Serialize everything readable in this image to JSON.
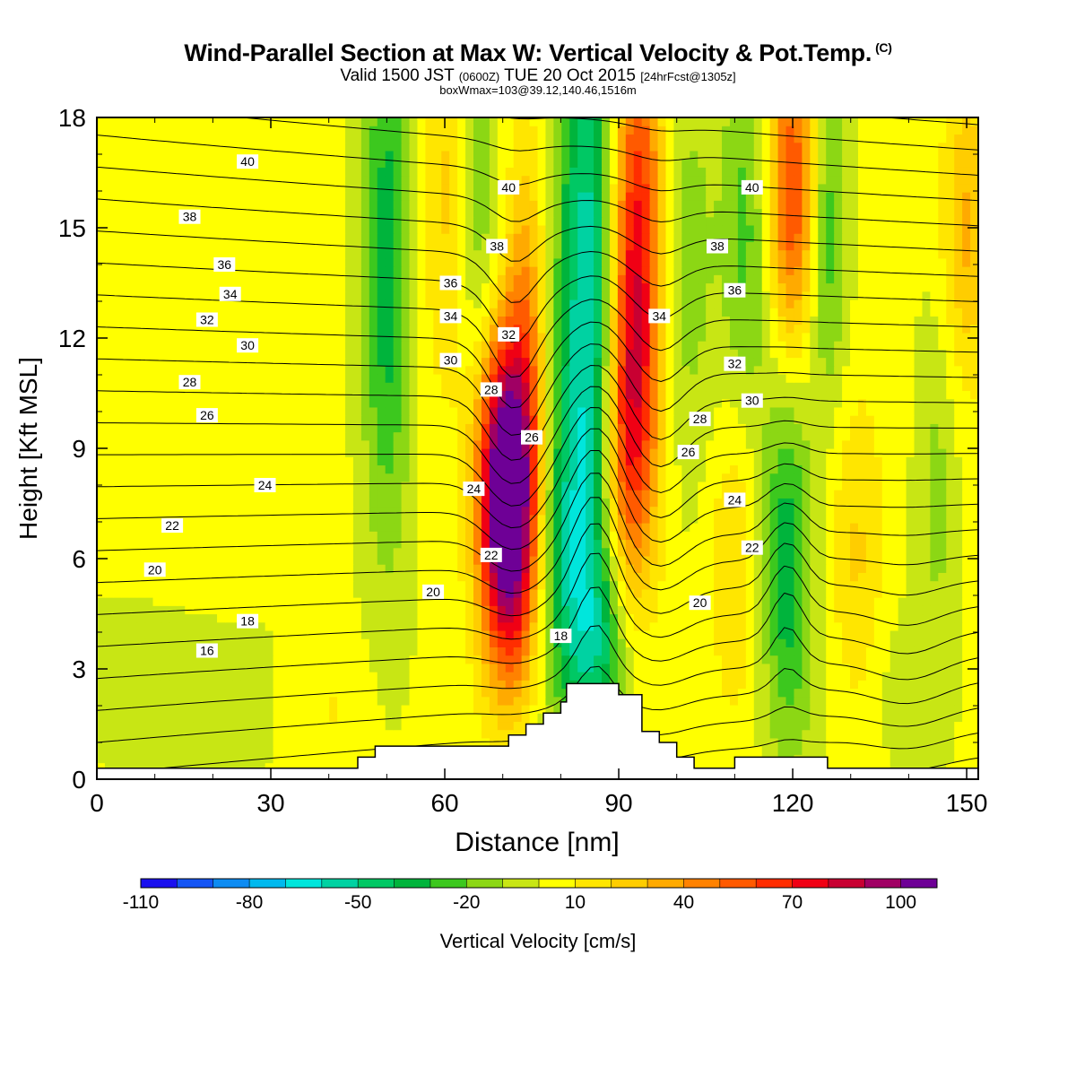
{
  "header": {
    "title": "Wind-Parallel Section at Max W: Vertical Velocity & Pot.Temp.",
    "title_tag": "(C)",
    "subtitle_valid": "Valid 1500 JST",
    "subtitle_utc": "(0600Z)",
    "subtitle_date": "TUE 20 Oct 2015",
    "subtitle_fcst": "[24hrFcst@1305z]",
    "subtitle2": "boxWmax=103@39.12,140.46,1516m"
  },
  "chart_data": {
    "type": "heatmap",
    "xlabel": "Distance [nm]",
    "ylabel": "Height [Kft MSL]",
    "xlim": [
      0,
      152
    ],
    "ylim": [
      0,
      18
    ],
    "xticks": [
      0,
      30,
      60,
      90,
      120,
      150
    ],
    "yticks": [
      0,
      3,
      6,
      9,
      12,
      15,
      18
    ],
    "colorbar": {
      "label": "Vertical Velocity [cm/s]",
      "levels": [
        -110,
        -100,
        -90,
        -80,
        -70,
        -60,
        -50,
        -40,
        -30,
        -20,
        -10,
        0,
        10,
        20,
        30,
        40,
        50,
        60,
        70,
        80,
        90,
        100,
        110
      ],
      "tick_labels": [
        "-110",
        "-80",
        "-50",
        "-20",
        "10",
        "40",
        "70",
        "100"
      ],
      "colors": [
        "#1a10ee",
        "#1455f5",
        "#0e8cf2",
        "#00b9ee",
        "#00e6dc",
        "#00d2a2",
        "#00c864",
        "#00b43c",
        "#3cc81e",
        "#8cd714",
        "#c8e614",
        "#ffff00",
        "#ffe600",
        "#ffcd00",
        "#ffaa00",
        "#ff8200",
        "#ff5a00",
        "#ff2d00",
        "#f00014",
        "#c80032",
        "#a00064",
        "#6e0096"
      ]
    },
    "w_field": {
      "units": "cm/s",
      "background_w": 2,
      "features": [
        {
          "x": 71,
          "z": 6.5,
          "sx": 3.5,
          "sz": 2.8,
          "w": 100
        },
        {
          "x": 70,
          "z": 9.5,
          "sx": 3.5,
          "sz": 2.5,
          "w": 55
        },
        {
          "x": 74,
          "z": 12,
          "sx": 2.5,
          "sz": 4.0,
          "w": 35
        },
        {
          "x": 93,
          "z": 14,
          "sx": 3.5,
          "sz": 5.0,
          "w": 80
        },
        {
          "x": 91,
          "z": 9,
          "sx": 3.0,
          "sz": 3.0,
          "w": 40
        },
        {
          "x": 120,
          "z": 16,
          "sx": 3.0,
          "sz": 3.0,
          "w": 60
        },
        {
          "x": 85,
          "z": 13,
          "sx": 4.0,
          "sz": 6.0,
          "w": -65
        },
        {
          "x": 81,
          "z": 6,
          "sx": 4.0,
          "sz": 3.0,
          "w": -35
        },
        {
          "x": 87,
          "z": 3.5,
          "sx": 4.0,
          "sz": 1.8,
          "w": -30
        },
        {
          "x": 50,
          "z": 14,
          "sx": 3.0,
          "sz": 5.5,
          "w": -38
        },
        {
          "x": 60,
          "z": 16,
          "sx": 3.0,
          "sz": 4.0,
          "w": 20
        },
        {
          "x": 66,
          "z": 15,
          "sx": 2.5,
          "sz": 4.0,
          "w": -20
        },
        {
          "x": 101,
          "z": 14,
          "sx": 4.0,
          "sz": 4.0,
          "w": -20
        },
        {
          "x": 112,
          "z": 15,
          "sx": 3.0,
          "sz": 4.0,
          "w": -25
        },
        {
          "x": 119,
          "z": 6,
          "sx": 3.0,
          "sz": 3.5,
          "w": -38
        },
        {
          "x": 126,
          "z": 15,
          "sx": 2.5,
          "sz": 3.5,
          "w": -30
        },
        {
          "x": 145,
          "z": 8,
          "sx": 2.5,
          "sz": 3.5,
          "w": -15
        },
        {
          "x": 150,
          "z": 15,
          "sx": 3.0,
          "sz": 3.0,
          "w": 30
        },
        {
          "x": 110,
          "z": 6,
          "sx": 3.0,
          "sz": 3.0,
          "w": 20
        },
        {
          "x": 131,
          "z": 5,
          "sx": 3.5,
          "sz": 4.0,
          "w": 22
        },
        {
          "x": 20,
          "z": 8.5,
          "sx": 10,
          "sz": 4.0,
          "w": 8
        },
        {
          "x": 18,
          "z": 3,
          "sx": 14,
          "sz": 2.5,
          "w": -8
        },
        {
          "x": 40,
          "z": 2,
          "sx": 5,
          "sz": 1.5,
          "w": 10
        },
        {
          "x": 132,
          "z": 2.5,
          "sx": 8,
          "sz": 2.0,
          "w": -10
        }
      ]
    },
    "terrain": {
      "x": [
        0,
        45,
        45,
        48,
        48,
        71,
        71,
        74,
        74,
        77,
        77,
        80,
        80,
        81,
        81,
        90,
        90,
        94,
        94,
        97,
        97,
        100,
        100,
        103,
        103,
        110,
        110,
        126,
        126,
        152
      ],
      "z": [
        0.3,
        0.3,
        0.6,
        0.6,
        0.9,
        0.9,
        1.2,
        1.2,
        1.5,
        1.5,
        1.8,
        1.8,
        2.1,
        2.1,
        2.6,
        2.6,
        2.3,
        2.3,
        1.3,
        1.3,
        1.0,
        1.0,
        0.6,
        0.6,
        0.3,
        0.3,
        0.6,
        0.6,
        0.3,
        0.3
      ]
    },
    "theta_contours": {
      "units": "C",
      "interval": 1,
      "min": 14,
      "max": 42,
      "labels": [
        {
          "value": "40",
          "x": 26,
          "z": 16.8
        },
        {
          "value": "38",
          "x": 16,
          "z": 15.3
        },
        {
          "value": "36",
          "x": 22,
          "z": 14.0
        },
        {
          "value": "34",
          "x": 23,
          "z": 13.2
        },
        {
          "value": "32",
          "x": 19,
          "z": 12.5
        },
        {
          "value": "30",
          "x": 26,
          "z": 11.8
        },
        {
          "value": "28",
          "x": 16,
          "z": 10.8
        },
        {
          "value": "26",
          "x": 19,
          "z": 9.9
        },
        {
          "value": "24",
          "x": 29,
          "z": 8.0
        },
        {
          "value": "22",
          "x": 13,
          "z": 6.9
        },
        {
          "value": "20",
          "x": 10,
          "z": 5.7
        },
        {
          "value": "18",
          "x": 26,
          "z": 4.3
        },
        {
          "value": "16",
          "x": 19,
          "z": 3.5
        },
        {
          "value": "40",
          "x": 71,
          "z": 16.1
        },
        {
          "value": "38",
          "x": 69,
          "z": 14.5
        },
        {
          "value": "36",
          "x": 61,
          "z": 13.5
        },
        {
          "value": "34",
          "x": 61,
          "z": 12.6
        },
        {
          "value": "32",
          "x": 71,
          "z": 12.1
        },
        {
          "value": "30",
          "x": 61,
          "z": 11.4
        },
        {
          "value": "28",
          "x": 68,
          "z": 10.6
        },
        {
          "value": "26",
          "x": 75,
          "z": 9.3
        },
        {
          "value": "24",
          "x": 65,
          "z": 7.9
        },
        {
          "value": "22",
          "x": 68,
          "z": 6.1
        },
        {
          "value": "20",
          "x": 58,
          "z": 5.1
        },
        {
          "value": "18",
          "x": 80,
          "z": 3.9
        },
        {
          "value": "40",
          "x": 113,
          "z": 16.1
        },
        {
          "value": "38",
          "x": 107,
          "z": 14.5
        },
        {
          "value": "36",
          "x": 110,
          "z": 13.3
        },
        {
          "value": "34",
          "x": 97,
          "z": 12.6
        },
        {
          "value": "32",
          "x": 110,
          "z": 11.3
        },
        {
          "value": "30",
          "x": 113,
          "z": 10.3
        },
        {
          "value": "28",
          "x": 104,
          "z": 9.8
        },
        {
          "value": "26",
          "x": 102,
          "z": 8.9
        },
        {
          "value": "24",
          "x": 110,
          "z": 7.6
        },
        {
          "value": "22",
          "x": 113,
          "z": 6.3
        },
        {
          "value": "20",
          "x": 104,
          "z": 4.8
        }
      ]
    }
  }
}
